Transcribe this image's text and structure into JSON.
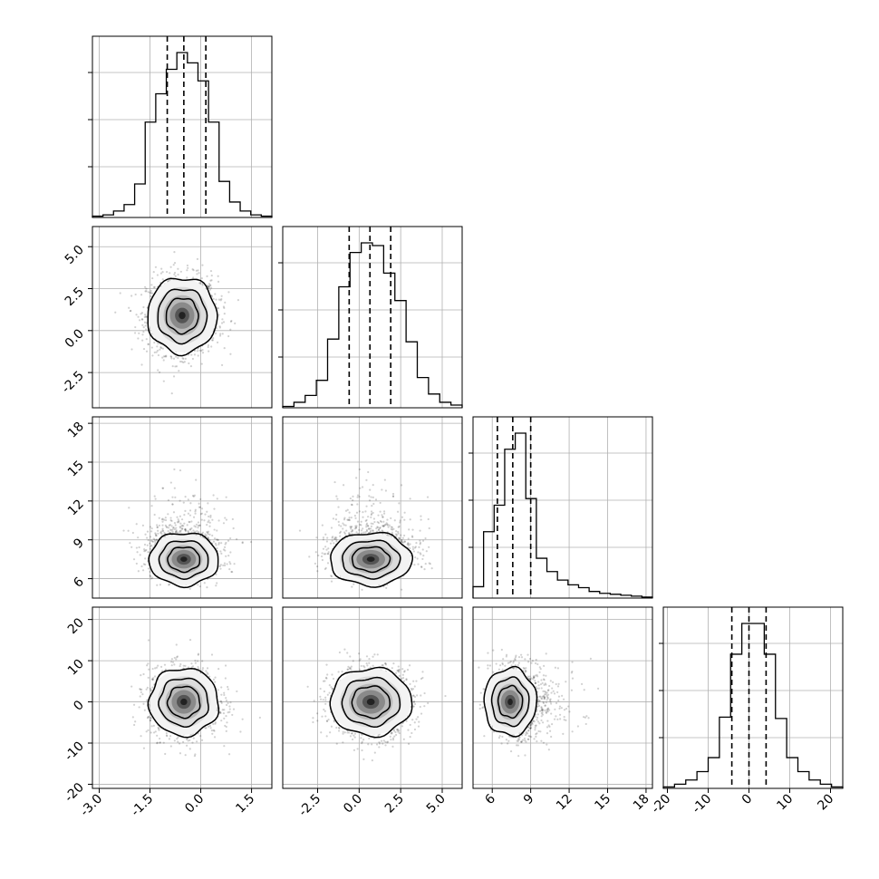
{
  "chart_data": {
    "type": "corner",
    "variables": [
      {
        "range": [
          -3.2,
          2.1
        ],
        "ticks": [
          "-3.0",
          "-1.5",
          "0.0",
          "1.5"
        ],
        "tick_values": [
          -3.0,
          -1.5,
          0.0,
          1.5
        ],
        "quantiles": [
          -0.99,
          -0.5,
          0.15
        ]
      },
      {
        "range": [
          -4.6,
          6.2
        ],
        "ticks": [
          "-2.5",
          "0.0",
          "2.5",
          "5.0"
        ],
        "tick_values": [
          -2.5,
          0.0,
          2.5,
          5.0
        ],
        "quantiles": [
          -0.6,
          0.65,
          1.9
        ]
      },
      {
        "range": [
          4.5,
          18.5
        ],
        "ticks": [
          "6",
          "9",
          "12",
          "15",
          "18"
        ],
        "tick_values": [
          6,
          9,
          12,
          15,
          18
        ],
        "quantiles": [
          6.4,
          7.6,
          9.0
        ]
      },
      {
        "range": [
          -21,
          23
        ],
        "ticks": [
          "-20",
          "-10",
          "0",
          "10",
          "20"
        ],
        "tick_values": [
          -20,
          -10,
          0,
          10,
          20
        ],
        "quantiles": [
          -4.2,
          0.0,
          4.2
        ]
      }
    ],
    "histograms": [
      {
        "counts": [
          1,
          2,
          5,
          10,
          26,
          74,
          96,
          115,
          128,
          120,
          106,
          74,
          28,
          12,
          5,
          2,
          1
        ]
      },
      {
        "counts": [
          1,
          4,
          9,
          20,
          50,
          88,
          113,
          120,
          118,
          98,
          78,
          48,
          22,
          10,
          4,
          2
        ]
      },
      {
        "counts": [
          12,
          70,
          98,
          157,
          174,
          105,
          42,
          28,
          19,
          14,
          11,
          7,
          5,
          4,
          3,
          2,
          1
        ]
      },
      {
        "counts": [
          1,
          3,
          6,
          12,
          22,
          51,
          96,
          118,
          118,
          96,
          50,
          22,
          12,
          6,
          3,
          1
        ]
      }
    ],
    "pairs": [
      {
        "x": 0,
        "y": 1,
        "center": [
          -0.55,
          0.9
        ],
        "spread": [
          0.5,
          1.1
        ],
        "skew_y": 0
      },
      {
        "x": 0,
        "y": 2,
        "center": [
          -0.5,
          7.5
        ],
        "spread": [
          0.5,
          1.0
        ],
        "skew_y": 1
      },
      {
        "x": 1,
        "y": 2,
        "center": [
          0.7,
          7.5
        ],
        "spread": [
          1.2,
          1.0
        ],
        "skew_y": 1
      },
      {
        "x": 0,
        "y": 3,
        "center": [
          -0.5,
          0.0
        ],
        "spread": [
          0.5,
          4.0
        ],
        "skew_y": 0
      },
      {
        "x": 1,
        "y": 3,
        "center": [
          0.7,
          0.0
        ],
        "spread": [
          1.2,
          4.0
        ],
        "skew_y": 0
      },
      {
        "x": 2,
        "y": 3,
        "center": [
          7.4,
          0.0
        ],
        "spread": [
          1.0,
          4.0
        ],
        "skew_x": 1
      }
    ],
    "grid": true,
    "colors": {
      "line": "#000000",
      "grid": "#b0b0b0",
      "points": "#000000"
    }
  }
}
